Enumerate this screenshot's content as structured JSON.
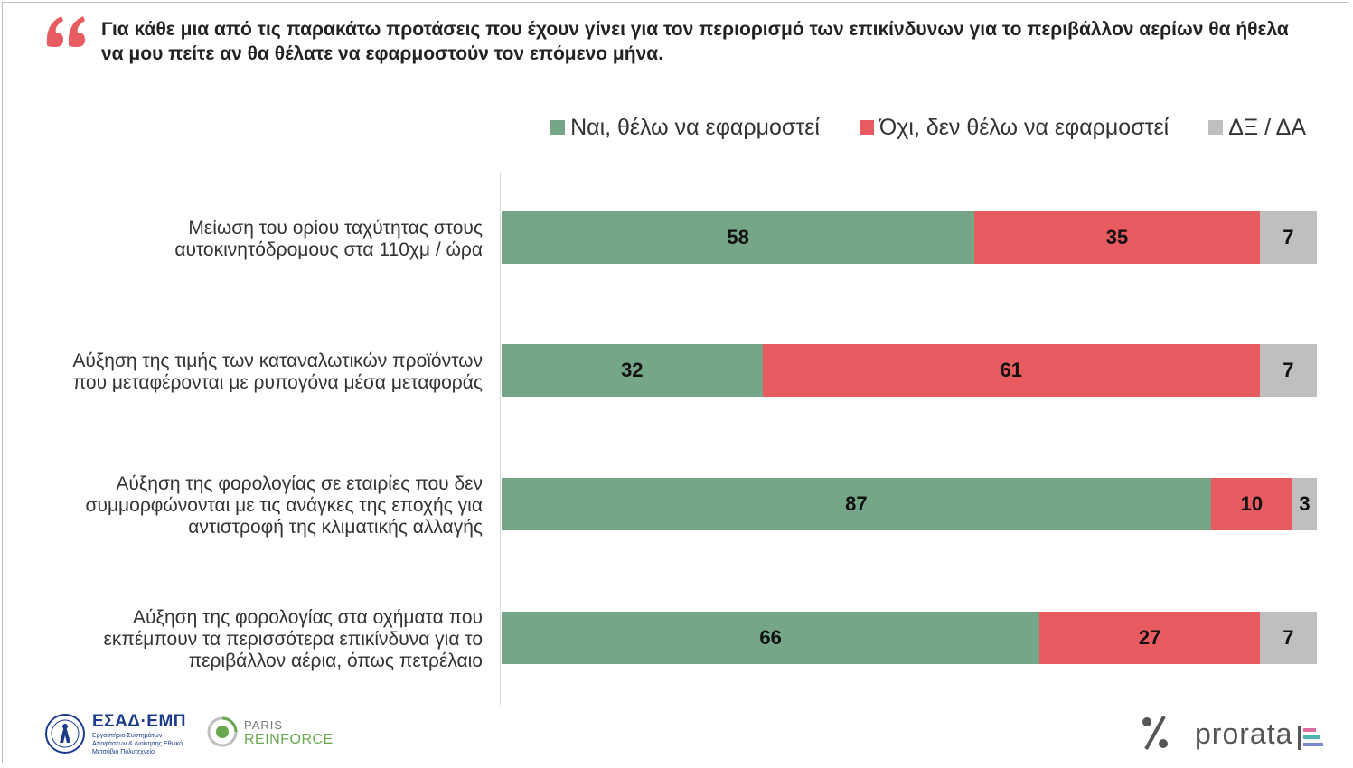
{
  "title": "Για κάθε μια από τις παρακάτω προτάσεις που έχουν γίνει για τον περιορισμό των επικίνδυνων για το περιβάλλον αερίων θα ήθελα να μου πείτε αν θα θέλατε να εφαρμοστούν τον επόμενο μήνα.",
  "colors": {
    "yes": "#76a688",
    "no": "#e85b60",
    "dk": "#bfbfbf",
    "quote": "#e85b60"
  },
  "chart_data": {
    "type": "bar",
    "orientation": "horizontal",
    "stacked": true,
    "normalized": true,
    "categories": [
      "Μείωση του ορίου ταχύτητας στους αυτοκινητόδρομους στα 110χμ / ώρα",
      "Αύξηση της τιμής των καταναλωτικών προϊόντων που μεταφέρονται με ρυπογόνα μέσα μεταφοράς",
      "Αύξηση της φορολογίας σε εταιρίες που δεν συμμορφώνονται με τις ανάγκες της εποχής για αντιστροφή της κλιματικής αλλαγής",
      "Αύξηση της φορολογίας στα οχήματα που εκπέμπουν τα περισσότερα επικίνδυνα για το περιβάλλον αέρια, όπως πετρέλαιο"
    ],
    "series": [
      {
        "name": "Ναι, θέλω να εφαρμοστεί",
        "color": "#76a688",
        "values": [
          58,
          32,
          87,
          66
        ]
      },
      {
        "name": "Όχι, δεν θέλω να εφαρμοστεί",
        "color": "#e85b60",
        "values": [
          35,
          61,
          10,
          27
        ]
      },
      {
        "name": "ΔΞ / ΔΑ",
        "color": "#bfbfbf",
        "values": [
          7,
          7,
          3,
          7
        ]
      }
    ],
    "xlim": [
      0,
      100
    ],
    "legend_position": "top-right"
  },
  "footer": {
    "esad_title": "ΕΣΑΔ·ΕΜΠ",
    "esad_subtitle": "Εργαστήριο Συστημάτων Αποφάσεων & Διοίκησης Εθνικό Μετσόβιο Πολυτεχνείο",
    "paris_top": "PARIS",
    "paris_bottom": "REINFORCE",
    "prorata": "prorata"
  }
}
